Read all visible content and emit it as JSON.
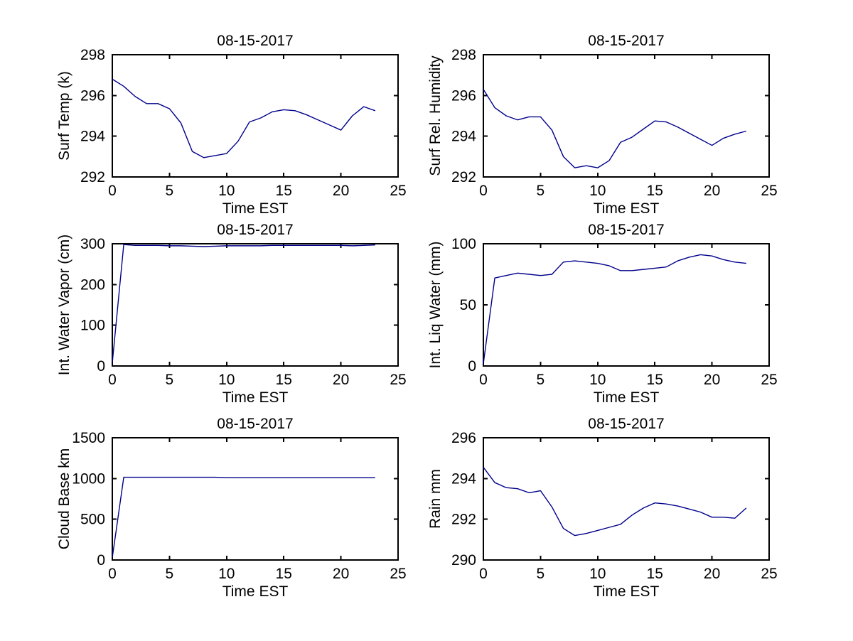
{
  "figure": {
    "background": "#ffffff",
    "line_color": "#00008B",
    "axis_color": "#000000"
  },
  "chart_data": [
    {
      "type": "line",
      "title": "08-15-2017",
      "xlabel": "Time EST",
      "ylabel": "Surf Temp (k)",
      "xlim": [
        0,
        25
      ],
      "ylim": [
        292,
        298
      ],
      "xticks": [
        0,
        5,
        10,
        15,
        20,
        25
      ],
      "yticks": [
        292,
        294,
        296,
        298
      ],
      "x": [
        0,
        1,
        2,
        3,
        4,
        5,
        6,
        7,
        8,
        9,
        10,
        11,
        12,
        13,
        14,
        15,
        16,
        17,
        18,
        19,
        20,
        21,
        22,
        23
      ],
      "values": [
        296.8,
        296.45,
        295.95,
        295.6,
        295.6,
        295.35,
        294.65,
        293.25,
        292.95,
        293.05,
        293.15,
        293.75,
        294.7,
        294.9,
        295.2,
        295.3,
        295.25,
        295.05,
        294.8,
        294.55,
        294.3,
        295.0,
        295.45,
        295.25
      ]
    },
    {
      "type": "line",
      "title": "08-15-2017",
      "xlabel": "Time EST",
      "ylabel": "Surf Rel. Humidity",
      "xlim": [
        0,
        25
      ],
      "ylim": [
        292,
        298
      ],
      "xticks": [
        0,
        5,
        10,
        15,
        20,
        25
      ],
      "yticks": [
        292,
        294,
        296,
        298
      ],
      "x": [
        0,
        1,
        2,
        3,
        4,
        5,
        6,
        7,
        8,
        9,
        10,
        11,
        12,
        13,
        14,
        15,
        16,
        17,
        18,
        19,
        20,
        21,
        22,
        23
      ],
      "values": [
        296.3,
        295.4,
        295.0,
        294.8,
        294.95,
        294.95,
        294.3,
        293.0,
        292.45,
        292.55,
        292.45,
        292.8,
        293.7,
        293.95,
        294.35,
        294.75,
        294.7,
        294.45,
        294.15,
        293.85,
        293.55,
        293.9,
        294.1,
        294.25
      ]
    },
    {
      "type": "line",
      "title": "08-15-2017",
      "xlabel": "Time EST",
      "ylabel": "Int. Water Vapor (cm)",
      "xlim": [
        0,
        25
      ],
      "ylim": [
        0,
        300
      ],
      "xticks": [
        0,
        5,
        10,
        15,
        20,
        25
      ],
      "yticks": [
        0,
        100,
        200,
        300
      ],
      "x": [
        0,
        1,
        2,
        3,
        4,
        5,
        6,
        7,
        8,
        9,
        10,
        11,
        12,
        13,
        14,
        15,
        16,
        17,
        18,
        19,
        20,
        21,
        22,
        23
      ],
      "values": [
        8,
        298,
        296,
        296,
        296,
        295,
        295,
        294,
        293,
        294,
        295,
        295,
        295,
        295,
        296,
        296,
        296,
        296,
        296,
        296,
        296,
        295,
        296,
        297
      ]
    },
    {
      "type": "line",
      "title": "08-15-2017",
      "xlabel": "Time EST",
      "ylabel": "Int. Liq Water (mm)",
      "xlim": [
        0,
        25
      ],
      "ylim": [
        0,
        100
      ],
      "xticks": [
        0,
        5,
        10,
        15,
        20,
        25
      ],
      "yticks": [
        0,
        50,
        100
      ],
      "x": [
        0,
        1,
        2,
        3,
        4,
        5,
        6,
        7,
        8,
        9,
        10,
        11,
        12,
        13,
        14,
        15,
        16,
        17,
        18,
        19,
        20,
        21,
        22,
        23
      ],
      "values": [
        2,
        72,
        74,
        76,
        75,
        74,
        75,
        85,
        86,
        85,
        84,
        82,
        78,
        78,
        79,
        80,
        81,
        86,
        89,
        91,
        90,
        87,
        85,
        84
      ]
    },
    {
      "type": "line",
      "title": "08-15-2017",
      "xlabel": "Time EST",
      "ylabel": "Cloud Base km",
      "xlim": [
        0,
        25
      ],
      "ylim": [
        0,
        1500
      ],
      "xticks": [
        0,
        5,
        10,
        15,
        20,
        25
      ],
      "yticks": [
        0,
        500,
        1000,
        1500
      ],
      "x": [
        0,
        1,
        2,
        3,
        4,
        5,
        6,
        7,
        8,
        9,
        10,
        11,
        12,
        13,
        14,
        15,
        16,
        17,
        18,
        19,
        20,
        21,
        22,
        23
      ],
      "values": [
        30,
        1015,
        1015,
        1015,
        1015,
        1015,
        1015,
        1015,
        1015,
        1015,
        1010,
        1010,
        1010,
        1010,
        1010,
        1010,
        1010,
        1010,
        1010,
        1010,
        1010,
        1010,
        1010,
        1010
      ]
    },
    {
      "type": "line",
      "title": "08-15-2017",
      "xlabel": "Time EST",
      "ylabel": "Rain mm",
      "xlim": [
        0,
        25
      ],
      "ylim": [
        290,
        296
      ],
      "xticks": [
        0,
        5,
        10,
        15,
        20,
        25
      ],
      "yticks": [
        290,
        292,
        294,
        296
      ],
      "x": [
        0,
        1,
        2,
        3,
        4,
        5,
        6,
        7,
        8,
        9,
        10,
        11,
        12,
        13,
        14,
        15,
        16,
        17,
        18,
        19,
        20,
        21,
        22,
        23
      ],
      "values": [
        294.55,
        293.8,
        293.55,
        293.5,
        293.3,
        293.4,
        292.6,
        291.55,
        291.2,
        291.3,
        291.45,
        291.6,
        291.75,
        292.2,
        292.55,
        292.8,
        292.75,
        292.65,
        292.5,
        292.35,
        292.1,
        292.1,
        292.05,
        292.55
      ]
    }
  ]
}
